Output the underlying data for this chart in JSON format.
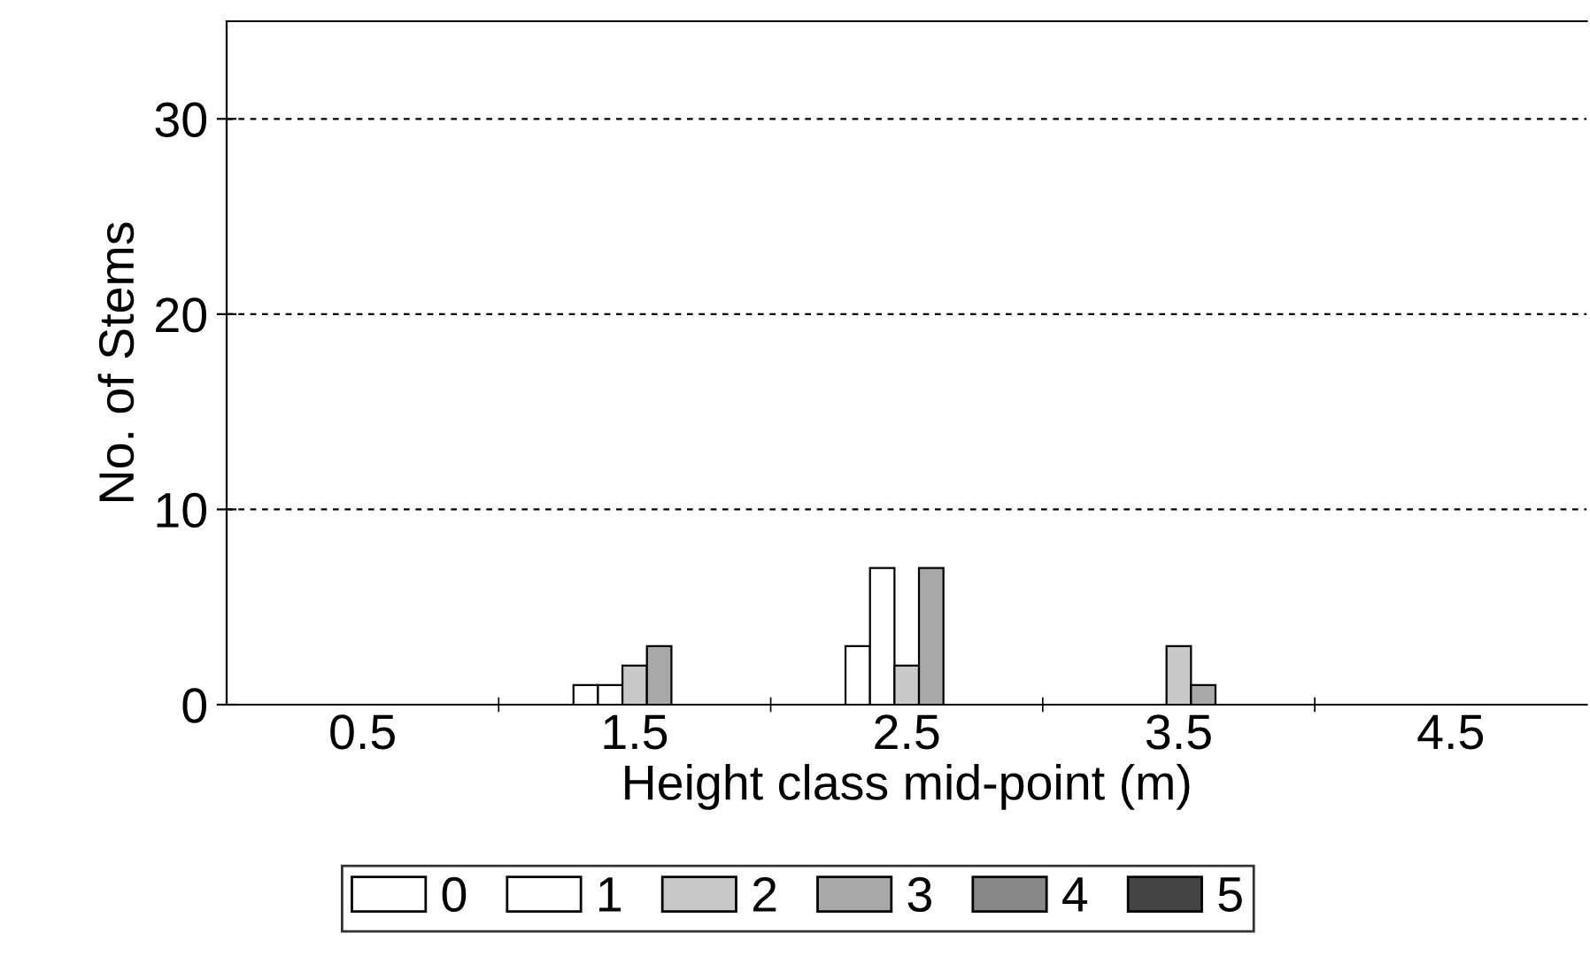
{
  "chart_data": {
    "type": "bar",
    "xlabel": "Height class mid-point (m)",
    "ylabel": "No. of Stems",
    "categories": [
      "0.5",
      "1.5",
      "2.5",
      "3.5",
      "4.5"
    ],
    "series": [
      {
        "name": "0",
        "color": "#ffffff",
        "values": [
          0,
          1,
          3,
          0,
          0
        ]
      },
      {
        "name": "1",
        "color": "#ffffff",
        "values": [
          0,
          1,
          7,
          0,
          0
        ]
      },
      {
        "name": "2",
        "color": "#c8c8c8",
        "values": [
          0,
          2,
          2,
          3,
          0
        ]
      },
      {
        "name": "3",
        "color": "#a8a8a8",
        "values": [
          0,
          3,
          7,
          1,
          0
        ]
      },
      {
        "name": "4",
        "color": "#888888",
        "values": [
          0,
          0,
          0,
          0,
          0
        ]
      },
      {
        "name": "5",
        "color": "#444444",
        "values": [
          0,
          0,
          0,
          0,
          0
        ]
      }
    ],
    "ylim": [
      0,
      35
    ],
    "yticks": [
      0,
      10,
      20,
      30
    ],
    "grid": "y",
    "legend": "bottom"
  }
}
